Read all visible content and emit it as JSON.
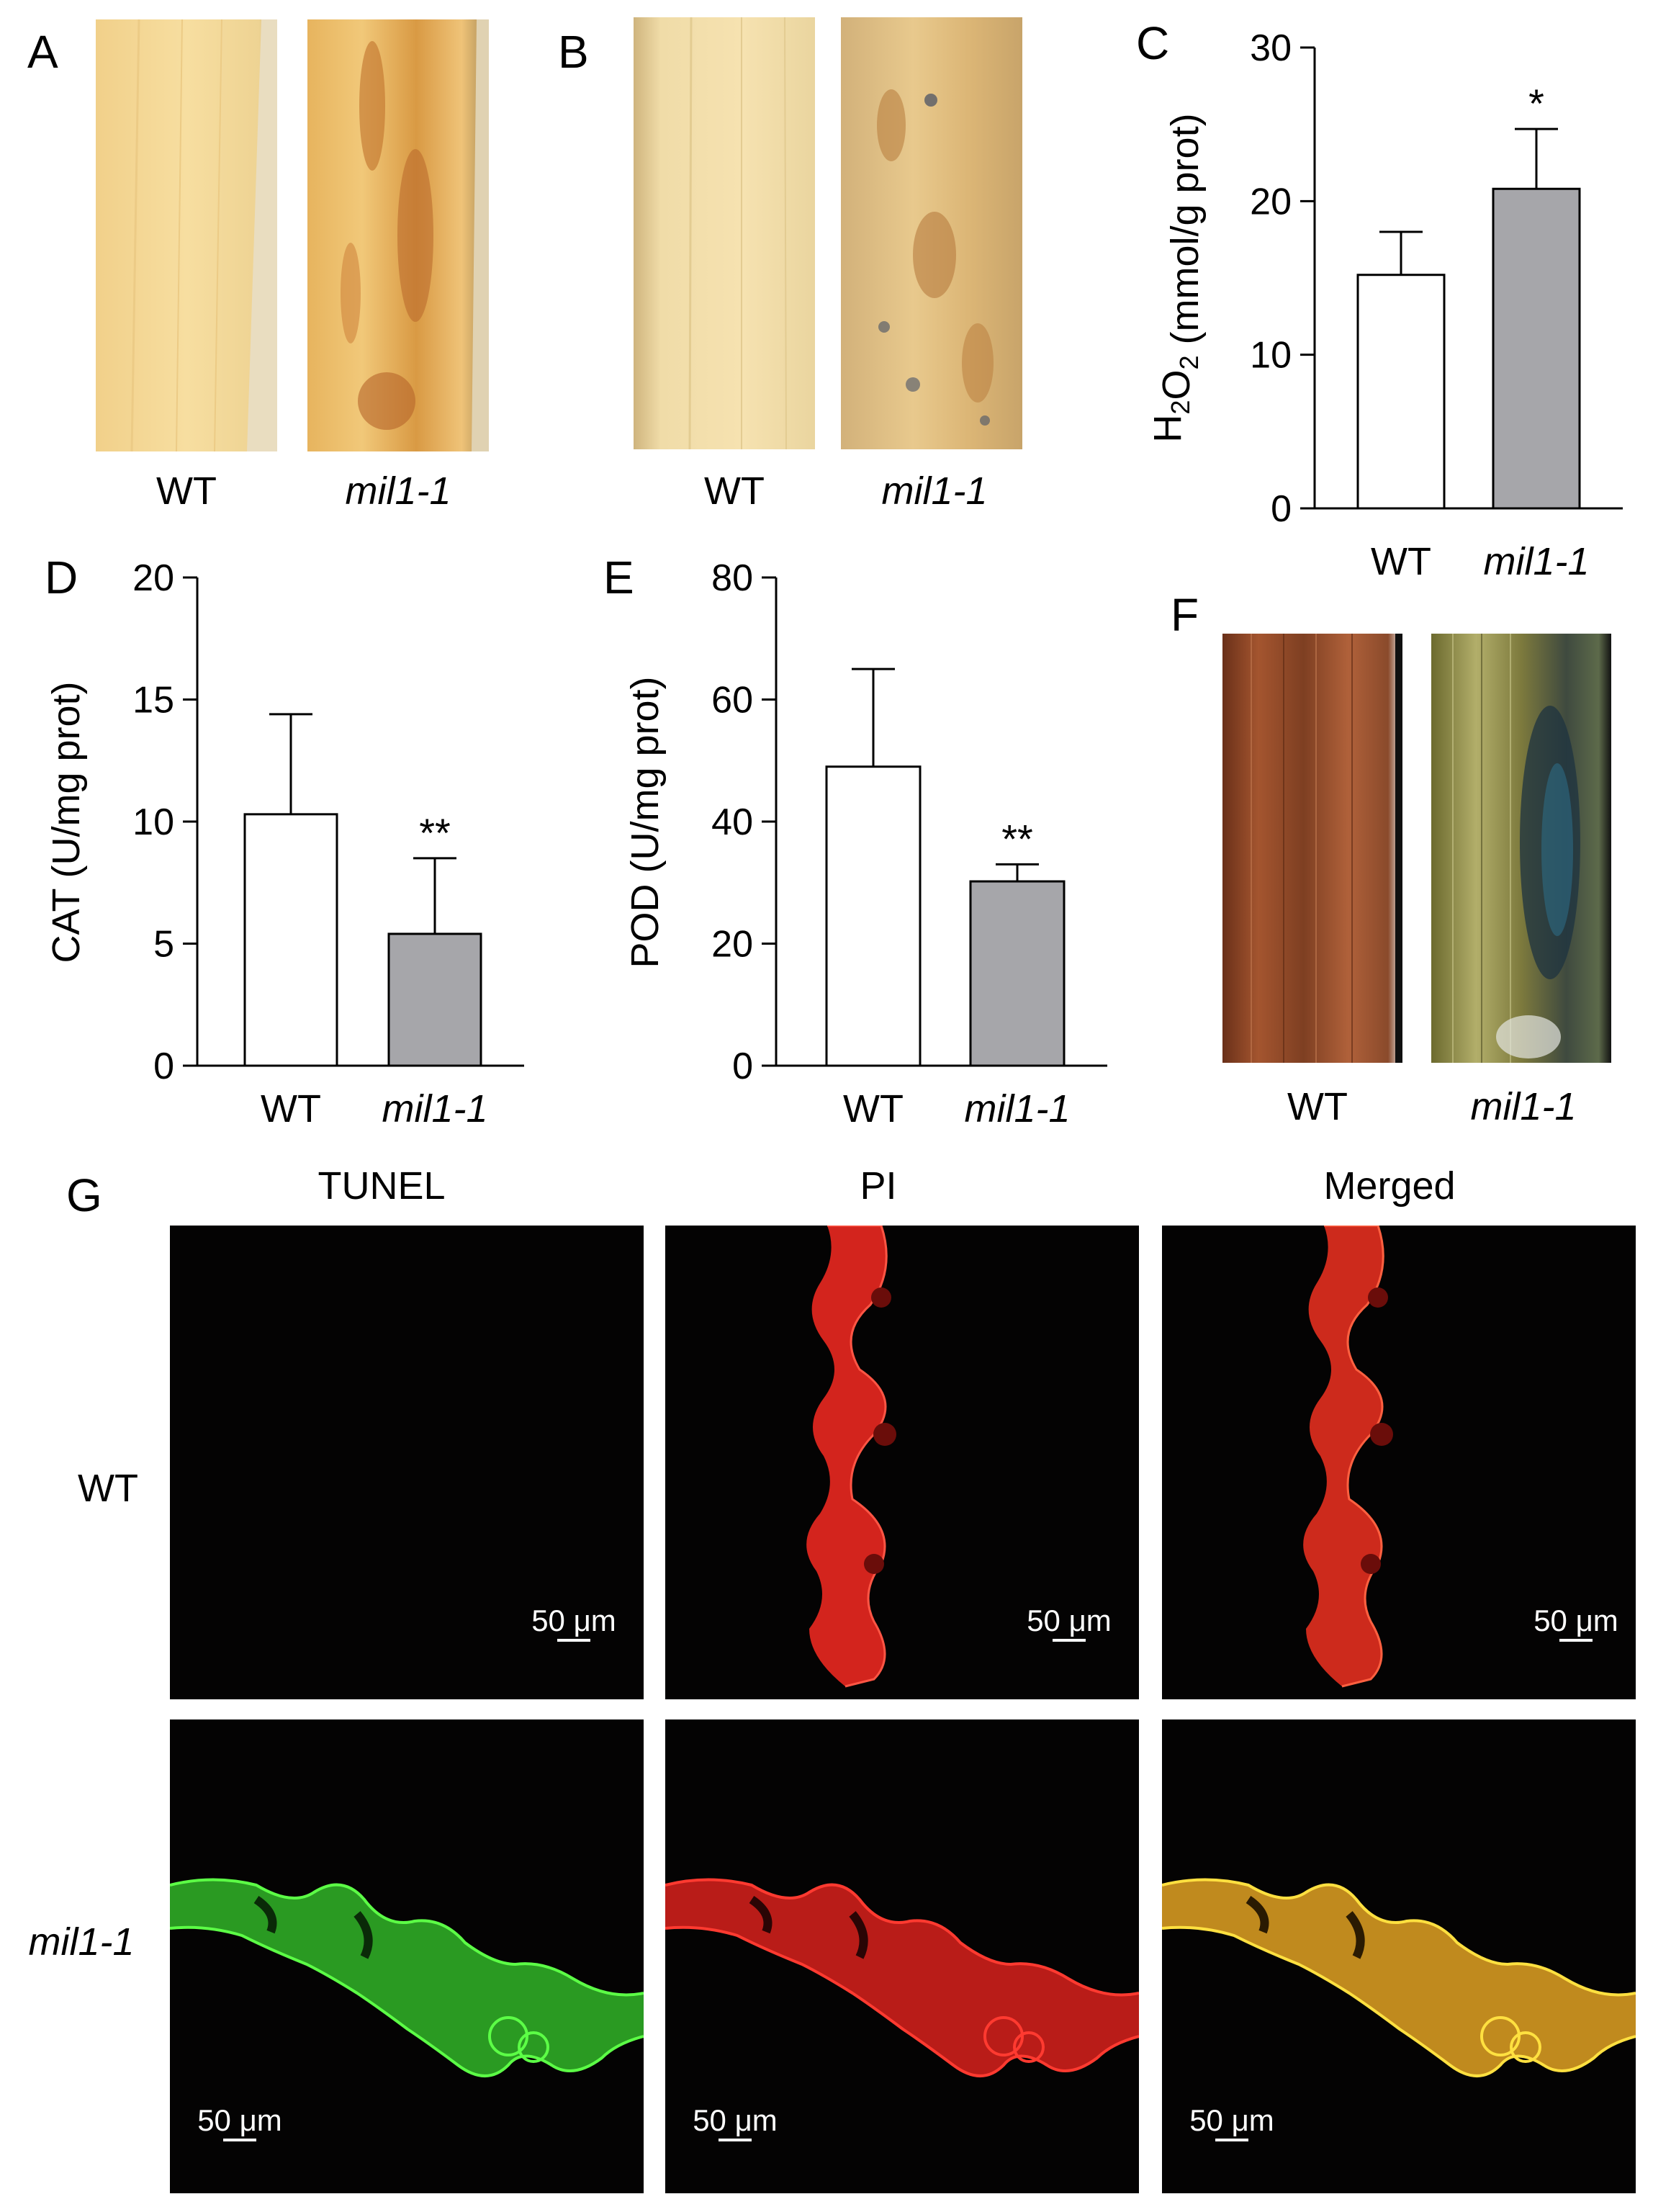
{
  "panel_labels": [
    "A",
    "B",
    "C",
    "D",
    "E",
    "F",
    "G"
  ],
  "photo_captions": {
    "a": [
      "WT",
      "mil1-1"
    ],
    "b": [
      "WT",
      "mil1-1"
    ],
    "f": [
      "WT",
      "mil1-1"
    ]
  },
  "microscopy": {
    "columns": [
      "TUNEL",
      "PI",
      "Merged"
    ],
    "rows": [
      "WT",
      "mil1-1"
    ],
    "scale_bar": "50 μm"
  },
  "chart_data": [
    {
      "panel": "C",
      "type": "bar",
      "categories": [
        "WT",
        "mil1-1"
      ],
      "values": [
        15.2,
        20.8
      ],
      "errors": [
        2.8,
        3.9
      ],
      "significance": [
        "",
        "*"
      ],
      "ylabel": "H2O2 (mmol/g prot)",
      "ylim": [
        0,
        30
      ],
      "yticks": [
        "0",
        "10",
        "20",
        "30"
      ],
      "bar_colors": [
        "#ffffff",
        "#a6a6aa"
      ]
    },
    {
      "panel": "D",
      "type": "bar",
      "categories": [
        "WT",
        "mil1-1"
      ],
      "values": [
        10.3,
        5.4
      ],
      "errors": [
        4.1,
        3.1
      ],
      "significance": [
        "",
        "**"
      ],
      "ylabel": "CAT (U/mg prot)",
      "ylim": [
        0,
        20
      ],
      "yticks": [
        "0",
        "5",
        "10",
        "15",
        "20"
      ],
      "bar_colors": [
        "#ffffff",
        "#a6a6aa"
      ]
    },
    {
      "panel": "E",
      "type": "bar",
      "categories": [
        "WT",
        "mil1-1"
      ],
      "values": [
        49,
        30.2
      ],
      "errors": [
        16,
        2.8
      ],
      "significance": [
        "",
        "**"
      ],
      "ylabel": "POD (U/mg prot)",
      "ylim": [
        0,
        80
      ],
      "yticks": [
        "0",
        "20",
        "40",
        "60",
        "80"
      ],
      "bar_colors": [
        "#ffffff",
        "#a6a6aa"
      ]
    }
  ]
}
